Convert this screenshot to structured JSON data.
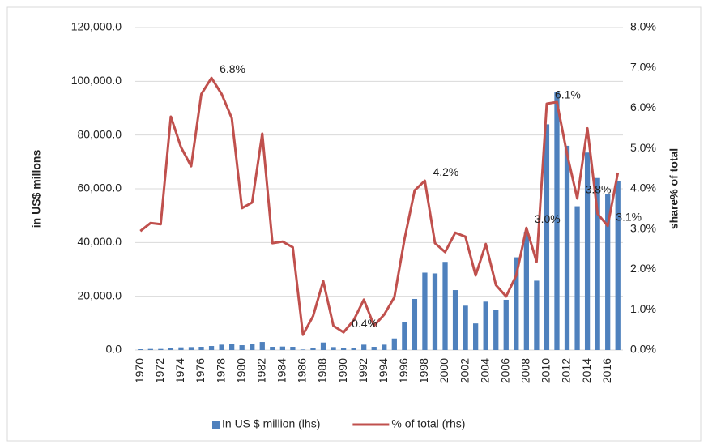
{
  "chart_data": {
    "type": "bar-line",
    "categories": [
      "1970",
      null,
      "1972",
      null,
      "1974",
      null,
      "1976",
      null,
      "1978",
      null,
      "1980",
      null,
      "1982",
      null,
      "1984",
      null,
      "1986",
      null,
      "1988",
      null,
      "1990",
      null,
      "1992",
      null,
      "1994",
      null,
      "1996",
      null,
      "1998",
      null,
      "2000",
      null,
      "2002",
      null,
      "2004",
      null,
      "2006",
      null,
      "2008",
      null,
      "2010",
      null,
      "2012",
      null,
      "2014",
      null,
      "2016",
      null
    ],
    "series": [
      {
        "name": "In US $ million (lhs)",
        "type": "bar",
        "color": "#4f81bd",
        "values": [
          300,
          400,
          400,
          800,
          1000,
          1100,
          1200,
          1500,
          2000,
          2300,
          1800,
          2300,
          3000,
          1200,
          1300,
          1200,
          200,
          900,
          2800,
          1100,
          900,
          900,
          2000,
          1200,
          2000,
          4300,
          10500,
          19000,
          28800,
          28500,
          32800,
          22300,
          16500,
          9900,
          18000,
          15000,
          18700,
          34500,
          44000,
          25800,
          84000,
          96000,
          76000,
          53500,
          73500,
          64000,
          58000,
          63000
        ]
      },
      {
        "name": "% of total (rhs)",
        "type": "line",
        "axis": "y2",
        "color": "#c0504d",
        "values": [
          2.95,
          3.15,
          3.12,
          5.79,
          5.03,
          4.56,
          6.35,
          6.75,
          6.35,
          5.75,
          3.52,
          3.66,
          5.37,
          2.65,
          2.69,
          2.55,
          0.38,
          0.84,
          1.71,
          0.6,
          0.44,
          0.74,
          1.25,
          0.6,
          0.88,
          1.31,
          2.75,
          3.96,
          4.2,
          2.65,
          2.43,
          2.91,
          2.81,
          1.85,
          2.63,
          1.61,
          1.33,
          1.85,
          3.03,
          2.19,
          6.11,
          6.15,
          4.86,
          3.76,
          5.5,
          3.38,
          3.08,
          4.4
        ],
        "value_labels": [
          null,
          null,
          null,
          null,
          null,
          null,
          null,
          "6.8%",
          null,
          null,
          null,
          null,
          null,
          null,
          null,
          null,
          null,
          null,
          null,
          null,
          "0.4%",
          null,
          null,
          null,
          null,
          null,
          null,
          null,
          "4.2%",
          null,
          null,
          null,
          null,
          null,
          null,
          null,
          null,
          null,
          "3.0%",
          null,
          "6.1%",
          null,
          null,
          "3.8%",
          null,
          null,
          "3.1%",
          null
        ]
      }
    ],
    "ylabel": "in  US$ millons",
    "y2label": "share% of total",
    "ylim": [
      0,
      120000
    ],
    "yticks": [
      {
        "value": 0,
        "label": "0.0"
      },
      {
        "value": 20000,
        "label": "20,000.0"
      },
      {
        "value": 40000,
        "label": "40,000.0"
      },
      {
        "value": 60000,
        "label": "60,000.0"
      },
      {
        "value": 80000,
        "label": "80,000.0"
      },
      {
        "value": 100000,
        "label": "100,000.0"
      },
      {
        "value": 120000,
        "label": "120,000.0"
      }
    ],
    "y2lim": [
      0,
      8
    ],
    "y2ticks": [
      {
        "value": 0,
        "label": "0.0%"
      },
      {
        "value": 1,
        "label": "1.0%"
      },
      {
        "value": 2,
        "label": "2.0%"
      },
      {
        "value": 3,
        "label": "3.0%"
      },
      {
        "value": 4,
        "label": "4.0%"
      },
      {
        "value": 5,
        "label": "5.0%"
      },
      {
        "value": 6,
        "label": "6.0%"
      },
      {
        "value": 7,
        "label": "7.0%"
      },
      {
        "value": 8,
        "label": "8.0%"
      }
    ],
    "grid": true,
    "legend": "bottom"
  }
}
